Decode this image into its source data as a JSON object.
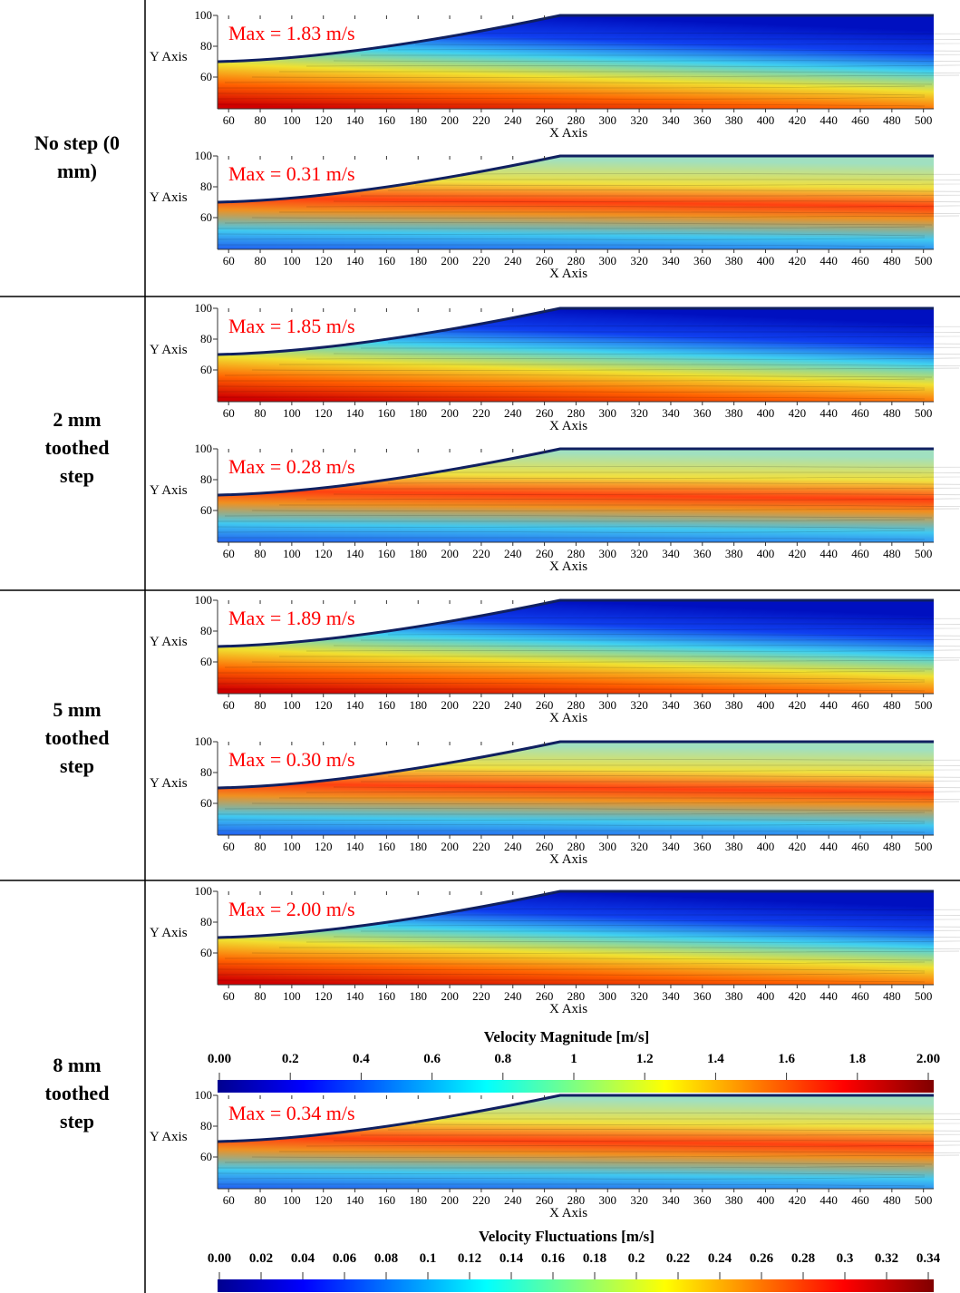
{
  "rows": [
    {
      "label": "No step (0 mm)",
      "panels": [
        {
          "max": "Max = 1.83 m/s"
        },
        {
          "max": "Max = 0.31 m/s"
        }
      ]
    },
    {
      "label": "2 mm toothed step",
      "panels": [
        {
          "max": "Max = 1.85 m/s"
        },
        {
          "max": "Max = 0.28 m/s"
        }
      ]
    },
    {
      "label": "5 mm toothed step",
      "panels": [
        {
          "max": "Max = 1.89 m/s"
        },
        {
          "max": "Max = 0.30 m/s"
        }
      ]
    },
    {
      "label": "8 mm toothed step",
      "panels": [
        {
          "max": "Max = 2.00 m/s"
        },
        {
          "max": "Max = 0.34 m/s"
        }
      ]
    }
  ],
  "y_axis_label": "Y Axis",
  "x_axis_label": "X Axis",
  "x_ticks": [
    60,
    80,
    100,
    120,
    140,
    160,
    180,
    200,
    220,
    240,
    260,
    280,
    300,
    320,
    340,
    360,
    380,
    400,
    420,
    440,
    460,
    480,
    500
  ],
  "y_ticks": [
    100,
    80,
    60
  ],
  "colorbars": [
    {
      "title": "Velocity Magnitude [m/s]",
      "labels": [
        "0.00",
        "0.2",
        "0.4",
        "0.6",
        "0.8",
        "1",
        "1.2",
        "1.4",
        "1.6",
        "1.8",
        "2.00"
      ]
    },
    {
      "title": "Velocity Fluctuations [m/s]",
      "labels": [
        "0.00",
        "0.02",
        "0.04",
        "0.06",
        "0.08",
        "0.1",
        "0.12",
        "0.14",
        "0.16",
        "0.18",
        "0.2",
        "0.22",
        "0.24",
        "0.26",
        "0.28",
        "0.3",
        "0.32",
        "0.34"
      ]
    }
  ]
}
